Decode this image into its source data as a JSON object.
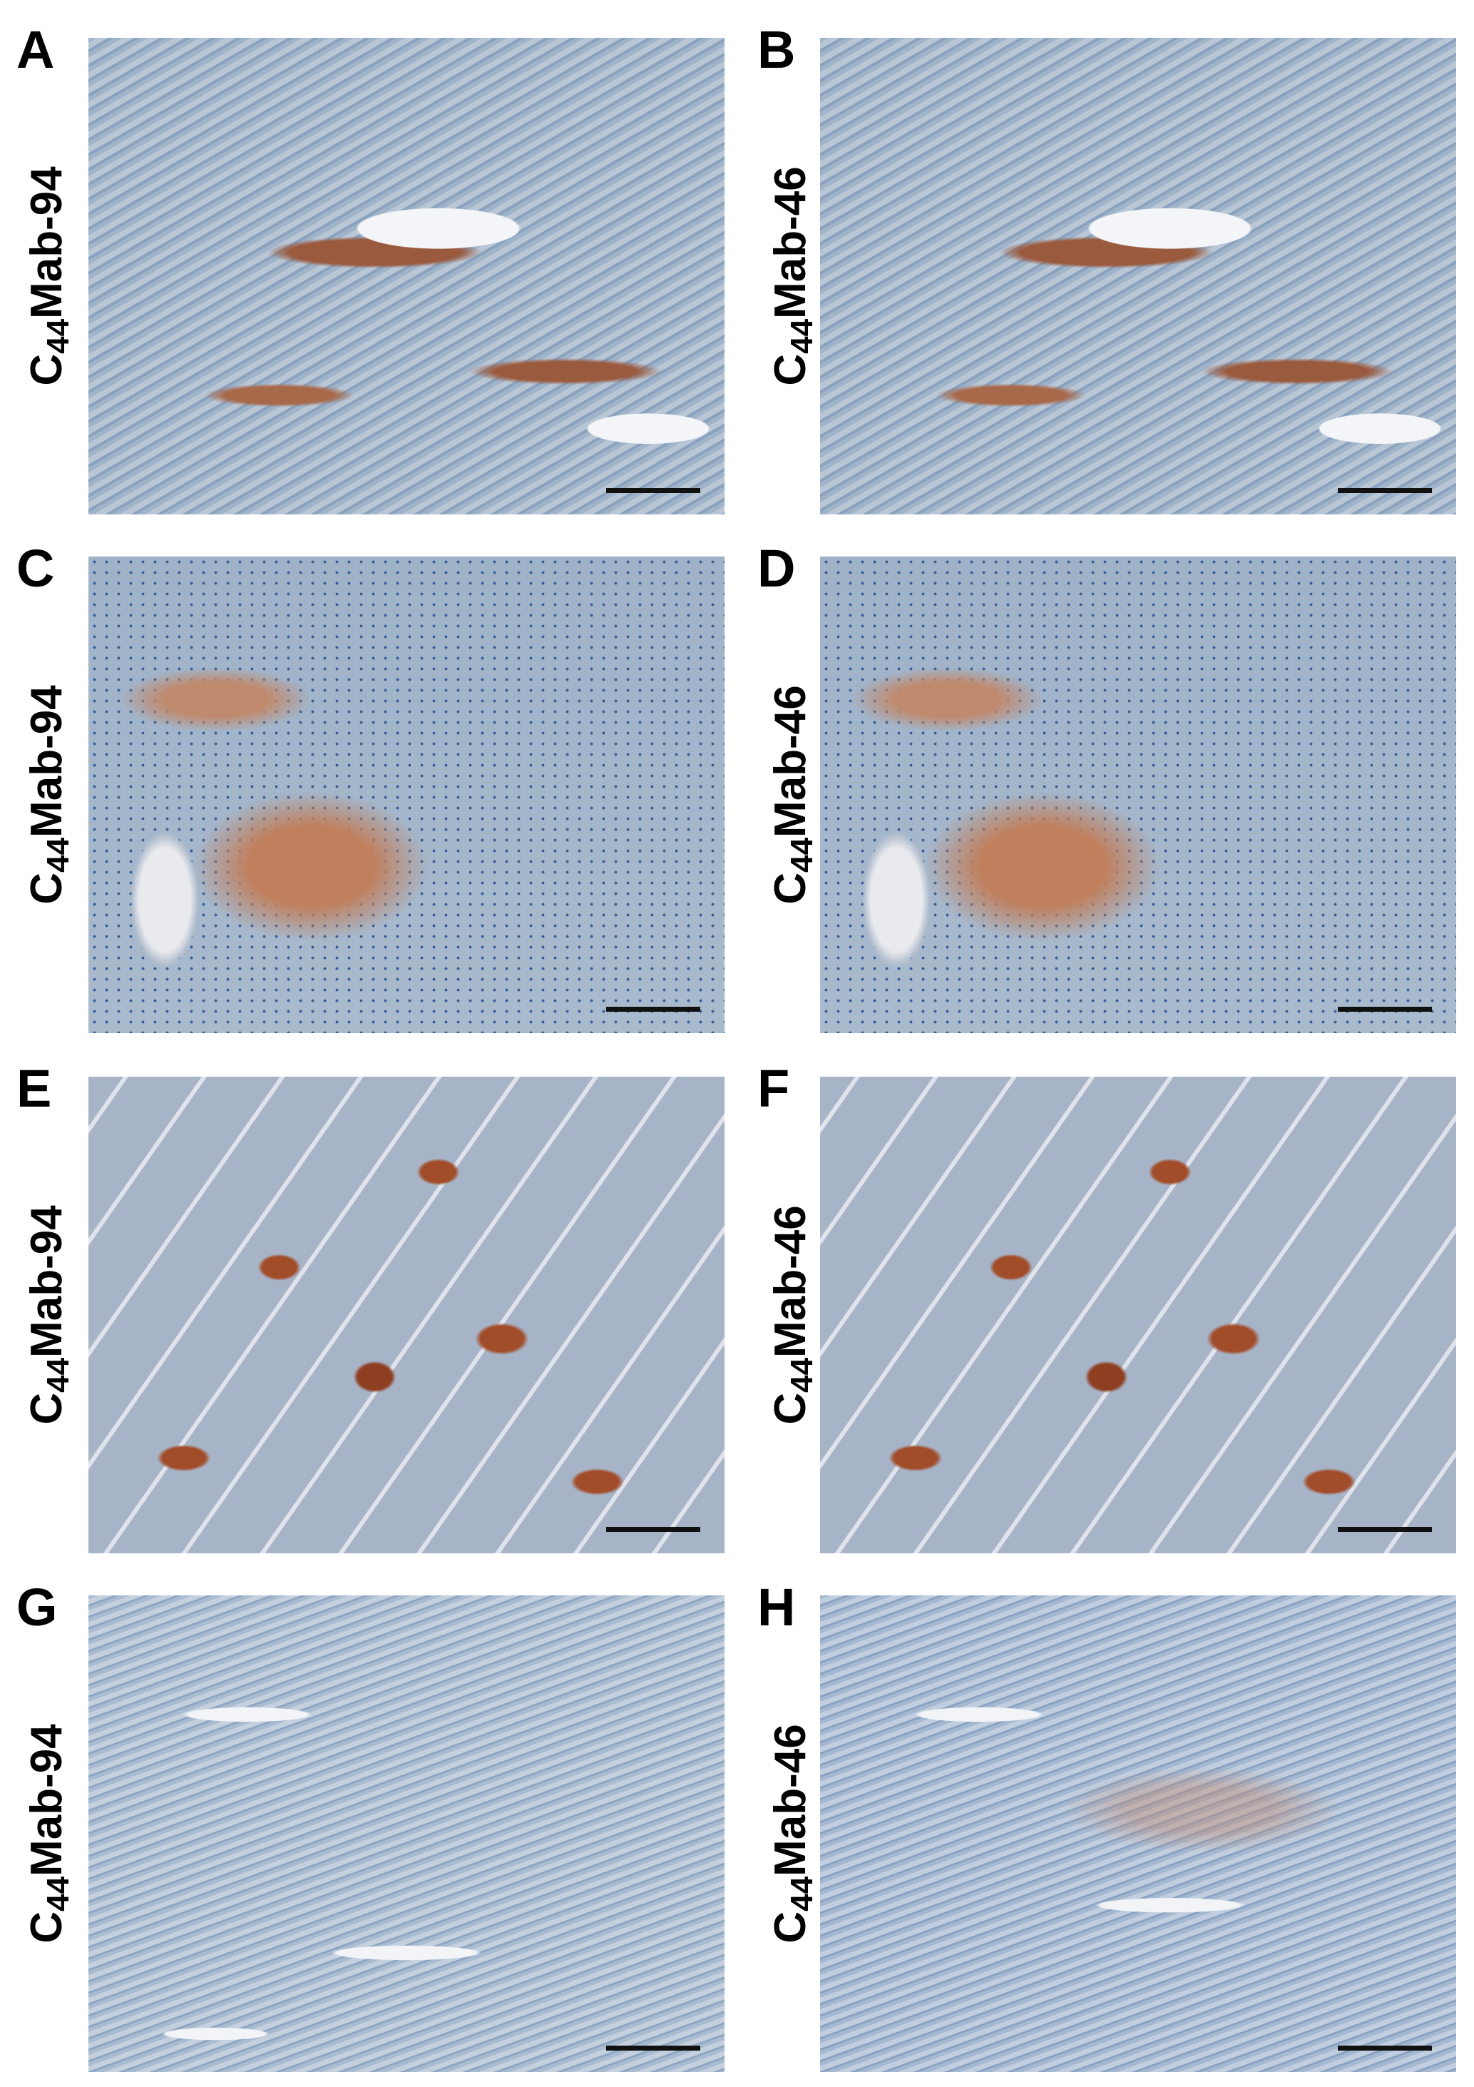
{
  "panels": [
    {
      "letter": "A",
      "antibody": {
        "prefix": "C",
        "sub": "44",
        "suffix": "Mab-94"
      }
    },
    {
      "letter": "B",
      "antibody": {
        "prefix": "C",
        "sub": "44",
        "suffix": "Mab-46"
      }
    },
    {
      "letter": "C",
      "antibody": {
        "prefix": "C",
        "sub": "44",
        "suffix": "Mab-94"
      }
    },
    {
      "letter": "D",
      "antibody": {
        "prefix": "C",
        "sub": "44",
        "suffix": "Mab-46"
      }
    },
    {
      "letter": "E",
      "antibody": {
        "prefix": "C",
        "sub": "44",
        "suffix": "Mab-94"
      }
    },
    {
      "letter": "F",
      "antibody": {
        "prefix": "C",
        "sub": "44",
        "suffix": "Mab-46"
      }
    },
    {
      "letter": "G",
      "antibody": {
        "prefix": "C",
        "sub": "44",
        "suffix": "Mab-94"
      }
    },
    {
      "letter": "H",
      "antibody": {
        "prefix": "C",
        "sub": "44",
        "suffix": "Mab-46"
      }
    }
  ],
  "colors": {
    "stain_brown": "#9a5a3e",
    "hematoxylin_blue": "#8aa2bd"
  }
}
